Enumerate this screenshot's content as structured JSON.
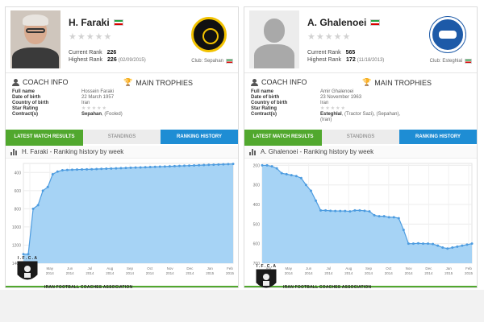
{
  "colors": {
    "green_tab": "#51a82e",
    "blue_tab": "#1e8dd4",
    "chart_fill": "#a6d3f5",
    "chart_line": "#4d9ce0"
  },
  "association": "IRAN FOOTBALL COACHES ASSOCIATION",
  "ifca_letters": "I . F . C . A",
  "panels": [
    {
      "name": "H. Faraki",
      "stars_display": "★★★★★",
      "current_rank_label": "Current Rank",
      "current_rank": "226",
      "highest_rank_label": "Highest Rank",
      "highest_rank": "226",
      "highest_rank_date": "(02/09/2015)",
      "club_label": "Club: Sepahan",
      "coach_info": "COACH INFO",
      "main_trophies": "MAIN TROPHIES",
      "details": [
        {
          "label": "Full name",
          "value": "Hossein Faraki"
        },
        {
          "label": "Date of birth",
          "value": "22 March 1957"
        },
        {
          "label": "Country of birth",
          "value": "Iran"
        },
        {
          "label": "Star Rating",
          "value": "★★★★★"
        },
        {
          "label": "Contract(s)",
          "value": "Sepahan",
          "extra": ", (Fooled)"
        }
      ],
      "tabs": [
        "LATEST MATCH RESULTS",
        "STANDINGS",
        "RANKING HISTORY"
      ],
      "chart_title": "H. Faraki - Ranking history by week"
    },
    {
      "name": "A. Ghalenoei",
      "stars_display": "★★★★★",
      "current_rank_label": "Current Rank",
      "current_rank": "565",
      "highest_rank_label": "Highest Rank",
      "highest_rank": "172",
      "highest_rank_date": "(11/18/2013)",
      "club_label": "Club: Esteghlal",
      "coach_info": "COACH INFO",
      "main_trophies": "MAIN TROPHIES",
      "details": [
        {
          "label": "Full name",
          "value": "Amir Ghalenoei"
        },
        {
          "label": "Date of birth",
          "value": "23 November 1963"
        },
        {
          "label": "Country of birth",
          "value": "Iran"
        },
        {
          "label": "Star Rating",
          "value": "★★★★★"
        },
        {
          "label": "Contract(s)",
          "value": "Esteghlal",
          "extra": ", (Tractor Sazi), (Sepahan), (Iran)"
        }
      ],
      "tabs": [
        "LATEST MATCH RESULTS",
        "STANDINGS",
        "RANKING HISTORY"
      ],
      "chart_title": "A. Ghalenoei - Ranking history by week"
    }
  ],
  "chart_data": [
    {
      "type": "area",
      "title": "H. Faraki - Ranking history by week",
      "xlabel": "",
      "ylabel": "",
      "y_tick_labels": [
        "400",
        "600",
        "800",
        "1000",
        "1200",
        "1400"
      ],
      "ylim": [
        1400,
        300
      ],
      "x_tick_labels": [
        "Apr 2014",
        "May 2014",
        "Jun 2014",
        "Jul 2014",
        "Aug 2014",
        "Sep 2014",
        "Oct 2014",
        "Nov 2014",
        "Dec 2014",
        "Jan 2015",
        "Feb 2015"
      ],
      "values": [
        1300,
        1300,
        800,
        760,
        600,
        560,
        420,
        390,
        375,
        372,
        370,
        368,
        366,
        365,
        364,
        362,
        360,
        358,
        356,
        354,
        352,
        350,
        348,
        346,
        344,
        342,
        340,
        338,
        336,
        334,
        332,
        330,
        328,
        326,
        324,
        322,
        320,
        318,
        316,
        314,
        312,
        310,
        308,
        306
      ]
    },
    {
      "type": "area",
      "title": "A. Ghalenoei - Ranking history by week",
      "xlabel": "",
      "ylabel": "",
      "y_tick_labels": [
        "200",
        "300",
        "400",
        "500",
        "600",
        "700"
      ],
      "ylim": [
        700,
        190
      ],
      "x_tick_labels": [
        "Apr 2014",
        "May 2014",
        "Jun 2014",
        "Jul 2014",
        "Aug 2014",
        "Sep 2014",
        "Oct 2014",
        "Nov 2014",
        "Dec 2014",
        "Jan 2015",
        "Feb 2015"
      ],
      "values": [
        200,
        200,
        205,
        215,
        240,
        245,
        250,
        255,
        265,
        300,
        330,
        380,
        430,
        430,
        432,
        433,
        433,
        433,
        435,
        430,
        430,
        432,
        435,
        455,
        460,
        460,
        465,
        465,
        470,
        530,
        600,
        600,
        598,
        600,
        600,
        602,
        610,
        620,
        625,
        620,
        615,
        610,
        605,
        600
      ]
    }
  ]
}
